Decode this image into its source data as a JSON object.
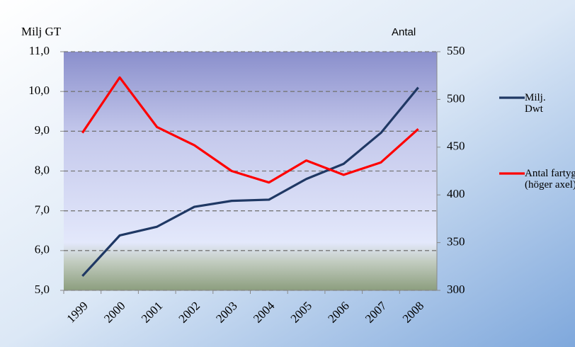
{
  "chart_data": {
    "type": "line",
    "y_label": "Milj GT",
    "y2_label": "Antal",
    "categories": [
      "1999",
      "2000",
      "2001",
      "2002",
      "2003",
      "2004",
      "2005",
      "2006",
      "2007",
      "2008"
    ],
    "series": [
      {
        "name": "Milj. Dwt",
        "color": "#1f3864",
        "values": [
          5.36,
          6.38,
          6.6,
          7.1,
          7.25,
          7.28,
          7.8,
          8.18,
          8.96,
          10.1
        ]
      },
      {
        "name": "Antal fartyg (höger axel)",
        "color": "#ff0000",
        "axis": "y2",
        "values": [
          465,
          523,
          471,
          452,
          425,
          413,
          436,
          421,
          434,
          469
        ]
      }
    ],
    "ylim": [
      5,
      11
    ],
    "yticks": [
      {
        "value": 5,
        "label": "5,0"
      },
      {
        "value": 6,
        "label": "6,0"
      },
      {
        "value": 7,
        "label": "7,0"
      },
      {
        "value": 8,
        "label": "8,0"
      },
      {
        "value": 9,
        "label": "9,0"
      },
      {
        "value": 10,
        "label": "10,0"
      },
      {
        "value": 11,
        "label": "11,0"
      }
    ],
    "y2lim": [
      300,
      550
    ],
    "y2ticks": [
      300,
      350,
      400,
      450,
      500,
      550
    ],
    "grid": true,
    "legend": "right"
  }
}
